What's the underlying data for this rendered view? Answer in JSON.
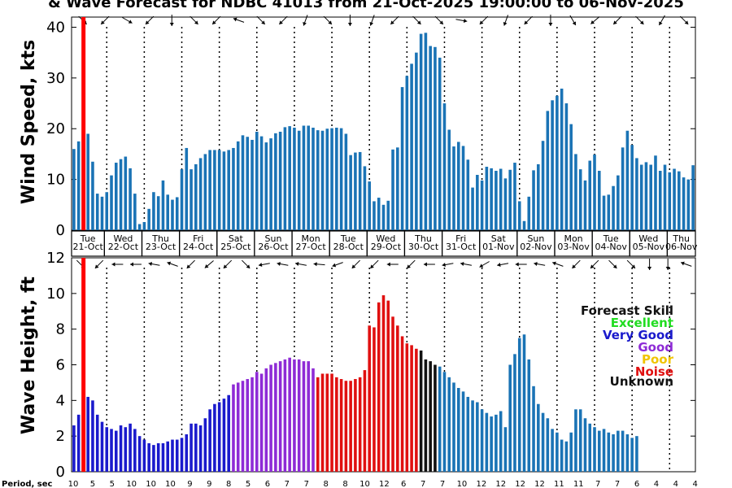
{
  "chart_data": [
    {
      "type": "bar",
      "title": "& Wave Forecast for NDBC 41013 from 21-Oct-2025 19:00:00 to 06-Nov-2025",
      "ylabel": "Wind Speed, kts",
      "ylim": [
        0,
        42
      ],
      "yticks": [
        0,
        10,
        20,
        30,
        40
      ],
      "bar_color": "#1a73b5",
      "values": [
        16,
        17.5,
        0,
        19,
        13.5,
        7.2,
        6.6,
        7.5,
        10.8,
        13.3,
        14,
        14.5,
        12.2,
        7.2,
        1.2,
        1.6,
        4.2,
        7.5,
        6.7,
        9.8,
        7,
        6,
        6.5,
        12,
        16.2,
        12,
        13,
        14.2,
        15,
        15.8,
        15.8,
        15.8,
        15.5,
        15.8,
        16.2,
        17.5,
        18.7,
        18.4,
        17.8,
        19.4,
        18.5,
        17.3,
        18.1,
        19.1,
        19.4,
        20.3,
        20.5,
        20.2,
        19.6,
        20.6,
        20.6,
        20.2,
        19.7,
        19.6,
        20,
        20.1,
        20.2,
        20.1,
        19,
        14.8,
        15.3,
        15.4,
        12.6,
        9.6,
        5.7,
        6.4,
        5,
        5.8,
        15.9,
        16.3,
        28.2,
        30.4,
        32.8,
        35,
        38.7,
        38.9,
        36.3,
        36.1,
        34,
        25,
        19.8,
        16.5,
        17.4,
        16.6,
        13.9,
        8.4,
        10.9,
        9.8,
        12.5,
        12.2,
        11.7,
        12.1,
        10.2,
        11.9,
        13.3,
        5.7,
        1.8,
        6.6,
        11.8,
        13,
        17.6,
        23.5,
        25.6,
        26.5,
        27.9,
        25,
        20.9,
        15,
        12,
        9.8,
        13.7,
        14.9,
        11.7,
        6.8,
        7,
        8.7,
        10.8,
        16.3,
        19.6,
        16.8,
        14.2,
        12.9,
        13.4,
        12.9,
        14.7,
        11.7,
        12.9,
        11.4,
        12.1,
        11.6,
        10.4,
        10,
        12.8
      ],
      "days": [
        {
          "dow": "Tue",
          "date": "21-Oct"
        },
        {
          "dow": "Wed",
          "date": "22-Oct"
        },
        {
          "dow": "Thu",
          "date": "23-Oct"
        },
        {
          "dow": "Fri",
          "date": "24-Oct"
        },
        {
          "dow": "Sat",
          "date": "25-Oct"
        },
        {
          "dow": "Sun",
          "date": "26-Oct"
        },
        {
          "dow": "Mon",
          "date": "27-Oct"
        },
        {
          "dow": "Tue",
          "date": "28-Oct"
        },
        {
          "dow": "Wed",
          "date": "29-Oct"
        },
        {
          "dow": "Thu",
          "date": "30-Oct"
        },
        {
          "dow": "Fri",
          "date": "31-Oct"
        },
        {
          "dow": "Sat",
          "date": "01-Nov"
        },
        {
          "dow": "Sun",
          "date": "02-Nov"
        },
        {
          "dow": "Mon",
          "date": "03-Nov"
        },
        {
          "dow": "Tue",
          "date": "04-Nov"
        },
        {
          "dow": "Wed",
          "date": "05-Nov"
        },
        {
          "dow": "Thu",
          "date": "06-Nov"
        }
      ],
      "direction_arrows_deg": [
        45,
        135,
        30,
        135,
        90,
        45,
        135,
        200,
        45,
        135,
        110,
        45,
        90,
        110,
        135,
        45,
        45,
        10,
        135,
        110,
        135,
        90,
        60,
        140,
        135,
        45,
        120,
        45
      ]
    },
    {
      "type": "bar",
      "ylabel": "Wave Height, ft",
      "ylim": [
        0,
        12
      ],
      "yticks": [
        0,
        2,
        4,
        6,
        8,
        10,
        12
      ],
      "values": [
        2.6,
        3.2,
        0,
        4.2,
        4,
        3.2,
        2.8,
        2.5,
        2.4,
        2.3,
        2.6,
        2.5,
        2.7,
        2.4,
        2,
        1.8,
        1.6,
        1.5,
        1.6,
        1.6,
        1.7,
        1.8,
        1.8,
        1.9,
        2.1,
        2.7,
        2.7,
        2.6,
        3,
        3.5,
        3.8,
        3.9,
        4.1,
        4.3,
        4.9,
        5,
        5.1,
        5.2,
        5.3,
        5.6,
        5.5,
        5.8,
        6,
        6.1,
        6.2,
        6.3,
        6.4,
        6.3,
        6.3,
        6.2,
        6.2,
        5.8,
        5.3,
        5.5,
        5.5,
        5.5,
        5.3,
        5.2,
        5.1,
        5.1,
        5.2,
        5.3,
        5.7,
        8.2,
        8.1,
        9.5,
        9.9,
        9.6,
        8.7,
        8.2,
        7.6,
        7.2,
        7.1,
        6.9,
        6.8,
        6.3,
        6.2,
        6,
        5.9,
        5.6,
        5.3,
        5,
        4.7,
        4.5,
        4.2,
        4,
        3.9,
        3.5,
        3.3,
        3.1,
        3.2,
        3.4,
        2.5,
        6,
        6.6,
        7.5,
        7.7,
        6.3,
        4.8,
        3.8,
        3.3,
        3,
        2.4,
        2.2,
        1.8,
        1.7,
        2.2,
        3.5,
        3.5,
        3,
        2.7,
        2.5,
        2.3,
        2.4,
        2.2,
        2.1,
        2.3,
        2.3,
        2.1,
        1.9,
        2
      ],
      "bar_colors": {
        "early": "#1a1acc",
        "good": "#8e2bd6",
        "noise": "#e01010",
        "unknown": "#111111",
        "late": "#1a73b5"
      },
      "period_labels": [
        "10",
        "5",
        "5",
        "10",
        "10",
        "10",
        "9",
        "9",
        "8",
        "5",
        "6",
        "7",
        "7",
        "8",
        "8",
        "10",
        "12",
        "6",
        "7",
        "7",
        "10",
        "12",
        "12",
        "12",
        "12",
        "11",
        "11",
        "7",
        "7",
        "6",
        "4",
        "4",
        "4"
      ],
      "period_title": "Period, sec",
      "direction_arrows_deg": [
        45,
        135,
        180,
        180,
        190,
        200,
        135,
        140,
        135,
        45,
        170,
        190,
        190,
        185,
        160,
        135,
        135,
        180,
        135,
        180,
        170,
        190,
        150,
        170,
        180,
        190,
        200,
        135,
        135,
        45,
        45,
        90,
        90,
        200
      ]
    }
  ],
  "legend": {
    "title": "Forecast Skill",
    "items": [
      {
        "label": "Excellent",
        "color": "#22dd22"
      },
      {
        "label": "Very Good",
        "color": "#1a1acc"
      },
      {
        "label": "Good",
        "color": "#8e2bd6"
      },
      {
        "label": "Poor",
        "color": "#f0c400"
      },
      {
        "label": "Noise",
        "color": "#e01010"
      },
      {
        "label": "Unknown",
        "color": "#111111"
      }
    ]
  },
  "current_time_marker_color": "#ff0000"
}
